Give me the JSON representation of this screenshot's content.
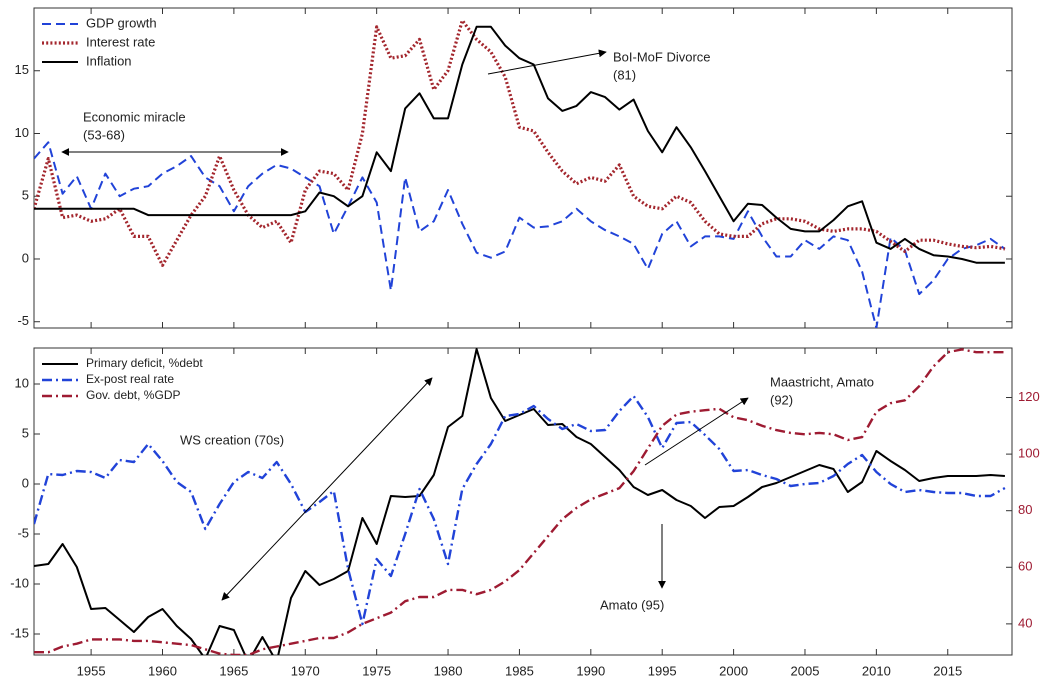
{
  "chart_data": [
    {
      "type": "line",
      "xtick_labels": false,
      "legend": "upper left",
      "xlim": [
        1951,
        2019.5
      ],
      "ylim": [
        -5.5,
        20
      ],
      "xticks": [
        1955,
        1960,
        1965,
        1970,
        1975,
        1980,
        1985,
        1990,
        1995,
        2000,
        2005,
        2010,
        2015
      ],
      "yticks": [
        -5,
        0,
        5,
        10,
        15
      ],
      "x": [
        1951,
        1952,
        1953,
        1954,
        1955,
        1956,
        1957,
        1958,
        1959,
        1960,
        1961,
        1962,
        1963,
        1964,
        1965,
        1966,
        1967,
        1968,
        1969,
        1970,
        1971,
        1972,
        1973,
        1974,
        1975,
        1976,
        1977,
        1978,
        1979,
        1980,
        1981,
        1982,
        1983,
        1984,
        1985,
        1986,
        1987,
        1988,
        1989,
        1990,
        1991,
        1992,
        1993,
        1994,
        1995,
        1996,
        1997,
        1998,
        1999,
        2000,
        2001,
        2002,
        2003,
        2004,
        2005,
        2006,
        2007,
        2008,
        2009,
        2010,
        2011,
        2012,
        2013,
        2014,
        2015,
        2016,
        2017,
        2018,
        2019
      ],
      "series": [
        {
          "name": "GDP growth",
          "color": "#2143d8",
          "style": "dashed",
          "values": [
            8.0,
            9.3,
            5.2,
            6.6,
            4.0,
            6.8,
            5.0,
            5.6,
            5.8,
            6.8,
            7.4,
            8.2,
            6.5,
            5.8,
            3.8,
            5.8,
            6.8,
            7.5,
            7.2,
            6.5,
            5.8,
            2.0,
            4.2,
            6.5,
            4.5,
            -2.5,
            6.5,
            2.2,
            3.0,
            5.5,
            2.8,
            0.5,
            0.1,
            0.6,
            3.3,
            2.5,
            2.6,
            3.0,
            4.0,
            3.0,
            2.3,
            1.8,
            1.2,
            -0.8,
            2.0,
            3.0,
            1.0,
            1.8,
            1.8,
            1.6,
            3.8,
            1.8,
            0.2,
            0.2,
            1.5,
            0.8,
            1.8,
            1.5,
            -1.0,
            -5.5,
            1.7,
            0.7,
            -2.8,
            -1.7,
            0.0,
            0.8,
            1.1,
            1.6,
            0.8
          ]
        },
        {
          "name": "Interest rate",
          "color": "#a3262d",
          "style": "dotted",
          "values": [
            4.0,
            8.0,
            3.3,
            3.5,
            3.0,
            3.2,
            4.0,
            1.8,
            1.8,
            -0.5,
            1.5,
            3.5,
            5.0,
            8.2,
            5.5,
            3.5,
            2.5,
            3.0,
            1.3,
            5.5,
            7.0,
            6.8,
            5.5,
            10.0,
            18.5,
            16.0,
            16.2,
            17.5,
            13.5,
            15.0,
            19.0,
            17.5,
            16.5,
            14.5,
            10.5,
            10.2,
            8.5,
            7.0,
            6.0,
            6.5,
            6.2,
            7.5,
            5.0,
            4.2,
            4.0,
            5.0,
            4.5,
            3.0,
            2.0,
            1.8,
            1.8,
            2.8,
            3.2,
            3.2,
            3.0,
            2.4,
            2.2,
            2.4,
            2.4,
            2.2,
            1.4,
            0.6,
            1.5,
            1.5,
            1.2,
            1.0,
            0.9,
            1.0,
            0.8
          ]
        },
        {
          "name": "Inflation",
          "color": "#000000",
          "style": "solid",
          "values": [
            4.0,
            4.0,
            4.0,
            4.0,
            4.0,
            4.0,
            4.0,
            4.0,
            3.5,
            3.5,
            3.5,
            3.5,
            3.5,
            3.5,
            3.5,
            3.5,
            3.5,
            3.5,
            3.5,
            3.8,
            5.3,
            5.0,
            4.2,
            5.0,
            8.5,
            7.0,
            12.0,
            13.2,
            11.2,
            11.2,
            15.5,
            18.5,
            18.5,
            17.0,
            16.0,
            15.5,
            12.8,
            11.8,
            12.2,
            13.3,
            12.9,
            11.9,
            12.7,
            10.2,
            8.5,
            10.5,
            8.9,
            7.0,
            5.0,
            3.0,
            4.4,
            4.3,
            3.3,
            2.4,
            2.2,
            2.2,
            3.1,
            4.2,
            4.6,
            1.3,
            0.8,
            1.6,
            0.8,
            0.3,
            0.2,
            0.0,
            -0.3,
            -0.3,
            -0.3
          ]
        }
      ],
      "annotations": [
        [
          "Economic miracle",
          "(53-68)"
        ],
        [
          "BoI-MoF Divorce",
          "(81)"
        ]
      ]
    },
    {
      "type": "line",
      "xtick_labels": true,
      "legend": "upper left",
      "xlim": [
        1951,
        2019.5
      ],
      "ylim": [
        -17.1,
        13.6
      ],
      "y2lim": [
        29,
        137.5
      ],
      "xticks": [
        1955,
        1960,
        1965,
        1970,
        1975,
        1980,
        1985,
        1990,
        1995,
        2000,
        2005,
        2010,
        2015
      ],
      "yticks": [
        -15,
        -10,
        -5,
        0,
        5,
        10
      ],
      "y2ticks": [
        40,
        60,
        80,
        100,
        120
      ],
      "x": [
        1951,
        1952,
        1953,
        1954,
        1955,
        1956,
        1957,
        1958,
        1959,
        1960,
        1961,
        1962,
        1963,
        1964,
        1965,
        1966,
        1967,
        1968,
        1969,
        1970,
        1971,
        1972,
        1973,
        1974,
        1975,
        1976,
        1977,
        1978,
        1979,
        1980,
        1981,
        1982,
        1983,
        1984,
        1985,
        1986,
        1987,
        1988,
        1989,
        1990,
        1991,
        1992,
        1993,
        1994,
        1995,
        1996,
        1997,
        1998,
        1999,
        2000,
        2001,
        2002,
        2003,
        2004,
        2005,
        2006,
        2007,
        2008,
        2009,
        2010,
        2011,
        2012,
        2013,
        2014,
        2015,
        2016,
        2017,
        2018,
        2019
      ],
      "series": [
        {
          "name": "Primary deficit, %debt",
          "color": "#000000",
          "style": "solid",
          "values": [
            -8.2,
            -8.0,
            -6.0,
            -8.3,
            -12.5,
            -12.4,
            -13.6,
            -14.8,
            -13.3,
            -12.5,
            -14.2,
            -15.5,
            -17.5,
            -14.2,
            -14.6,
            -17.8,
            -15.3,
            -17.8,
            -11.4,
            -8.7,
            -10.1,
            -9.5,
            -8.7,
            -3.4,
            -6.0,
            -1.2,
            -1.3,
            -1.2,
            0.9,
            5.7,
            6.8,
            13.5,
            8.6,
            6.3,
            6.9,
            7.5,
            5.9,
            6.0,
            4.7,
            4.0,
            2.7,
            1.4,
            -0.3,
            -1.1,
            -0.6,
            -1.6,
            -2.2,
            -3.4,
            -2.3,
            -2.2,
            -1.3,
            -0.3,
            0.1,
            0.7,
            1.3,
            1.9,
            1.5,
            -0.8,
            0.2,
            3.3,
            2.3,
            1.4,
            0.3,
            0.6,
            0.8,
            0.8,
            0.8,
            0.9,
            0.8
          ]
        },
        {
          "name": "Ex-post real rate",
          "color": "#2143d8",
          "style": "dashdot",
          "values": [
            -4.0,
            1.0,
            0.9,
            1.3,
            1.2,
            0.6,
            2.4,
            2.2,
            4.0,
            2.3,
            0.2,
            -0.8,
            -4.5,
            -2.0,
            0.2,
            1.2,
            0.6,
            2.2,
            0.0,
            -2.8,
            -1.8,
            -0.7,
            -8.5,
            -14.0,
            -7.5,
            -9.2,
            -5.0,
            -0.5,
            -3.5,
            -8.0,
            -0.5,
            2.0,
            4.0,
            6.8,
            7.0,
            7.8,
            6.5,
            5.5,
            6.0,
            5.3,
            5.4,
            7.3,
            8.8,
            6.7,
            3.6,
            6.1,
            6.2,
            4.9,
            3.5,
            1.3,
            1.4,
            0.9,
            0.5,
            -0.2,
            0.0,
            0.1,
            0.8,
            2.0,
            2.9,
            1.2,
            0.0,
            -0.8,
            -0.6,
            -0.8,
            -0.9,
            -0.9,
            -1.2,
            -1.2,
            -0.4
          ]
        },
        {
          "name": "Gov. debt, %GDP",
          "color": "#9e1b32",
          "style": "dashdot",
          "axis": "y2",
          "values": [
            30,
            30,
            32,
            33,
            34.5,
            34.5,
            34.5,
            34,
            34,
            33.5,
            33,
            32.5,
            31,
            29.5,
            29,
            29,
            31,
            32,
            33,
            34,
            35,
            35,
            37,
            40,
            42,
            44,
            48,
            49.5,
            49.5,
            52,
            52,
            50.5,
            52,
            55,
            59,
            65,
            71,
            77,
            81,
            84,
            86,
            88,
            94,
            102,
            110,
            114,
            115,
            115.5,
            116,
            113,
            112,
            110,
            108.5,
            107.5,
            107,
            107.5,
            107,
            105,
            106,
            115,
            118,
            119,
            124,
            131,
            136,
            137,
            136,
            136,
            136
          ]
        }
      ],
      "annotations": [
        [
          "WS creation (70s)"
        ],
        [
          "Maastricht, Amato",
          "(92)"
        ],
        [
          "Amato (95)"
        ]
      ]
    }
  ]
}
